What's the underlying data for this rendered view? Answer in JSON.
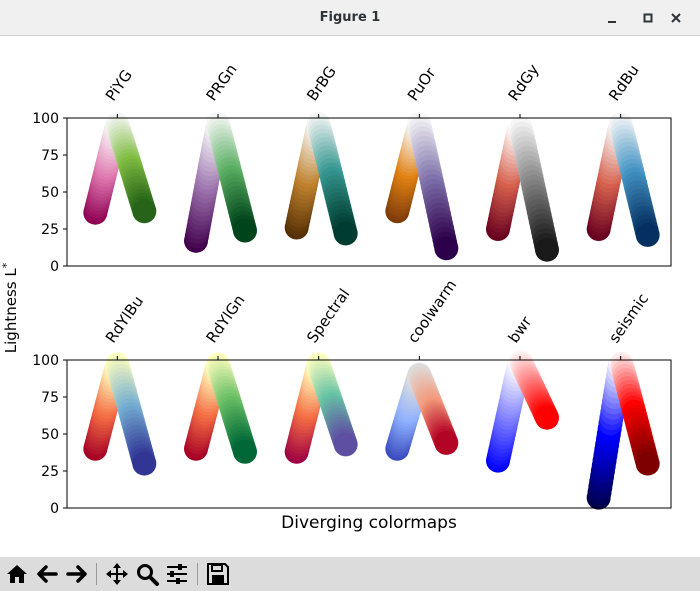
{
  "window": {
    "title": "Figure 1"
  },
  "toolbar": {
    "buttons": [
      "home-icon",
      "back-arrow-icon",
      "forward-arrow-icon",
      "pan-move-icon",
      "zoom-magnifier-icon",
      "configure-subplots-icon",
      "save-disk-icon"
    ]
  },
  "chart_data": {
    "type": "scatter",
    "xlabel": "Diverging colormaps",
    "ylabel": "Lightness L*",
    "ylim": [
      0,
      100
    ],
    "yticks": [
      0,
      25,
      50,
      75,
      100
    ],
    "panels": [
      {
        "series": [
          {
            "name": "PiYG",
            "start": 36,
            "mid": 96,
            "end": 37,
            "colors": [
              "#8e0152",
              "#de77ae",
              "#f7f7f7",
              "#7fbc41",
              "#276419"
            ]
          },
          {
            "name": "PRGn",
            "start": 17,
            "mid": 96,
            "end": 24,
            "colors": [
              "#40004b",
              "#9970ab",
              "#f7f7f7",
              "#5aae61",
              "#00441b"
            ]
          },
          {
            "name": "BrBG",
            "start": 26,
            "mid": 96,
            "end": 22,
            "colors": [
              "#543005",
              "#bf812d",
              "#f5f5f5",
              "#35978f",
              "#003c30"
            ]
          },
          {
            "name": "PuOr",
            "start": 37,
            "mid": 96,
            "end": 12,
            "colors": [
              "#7f3b08",
              "#e08214",
              "#f7f7f7",
              "#8073ac",
              "#2d004b"
            ]
          },
          {
            "name": "RdGy",
            "start": 25,
            "mid": 96,
            "end": 11,
            "colors": [
              "#67001f",
              "#d6604d",
              "#ffffff",
              "#878787",
              "#1a1a1a"
            ]
          },
          {
            "name": "RdBu",
            "start": 25,
            "mid": 96,
            "end": 21,
            "colors": [
              "#67001f",
              "#d6604d",
              "#f7f7f7",
              "#4393c3",
              "#053061"
            ]
          }
        ]
      },
      {
        "series": [
          {
            "name": "RdYlBu",
            "start": 40,
            "mid": 97,
            "end": 30,
            "colors": [
              "#a50026",
              "#f46d43",
              "#ffffbf",
              "#74add1",
              "#313695"
            ]
          },
          {
            "name": "RdYlGn",
            "start": 40,
            "mid": 97,
            "end": 38,
            "colors": [
              "#a50026",
              "#f46d43",
              "#ffffbf",
              "#66bd63",
              "#006837"
            ]
          },
          {
            "name": "Spectral",
            "start": 38,
            "mid": 97,
            "end": 43,
            "colors": [
              "#9e0142",
              "#f46d43",
              "#ffffbf",
              "#66c2a5",
              "#5e4fa2"
            ]
          },
          {
            "name": "coolwarm",
            "start": 40,
            "mid": 90,
            "end": 44,
            "colors": [
              "#3b4cc0",
              "#8db0fe",
              "#dddddd",
              "#f49a7b",
              "#b40426"
            ]
          },
          {
            "name": "bwr",
            "start": 32,
            "mid": 100,
            "end": 61,
            "colors": [
              "#0000ff",
              "#8080ff",
              "#ffffff",
              "#ff8080",
              "#ff0000"
            ]
          },
          {
            "name": "seismic",
            "start": 7,
            "mid": 100,
            "end": 30,
            "colors": [
              "#00004c",
              "#0000ff",
              "#ffffff",
              "#ff0000",
              "#7f0000"
            ]
          }
        ]
      }
    ]
  }
}
